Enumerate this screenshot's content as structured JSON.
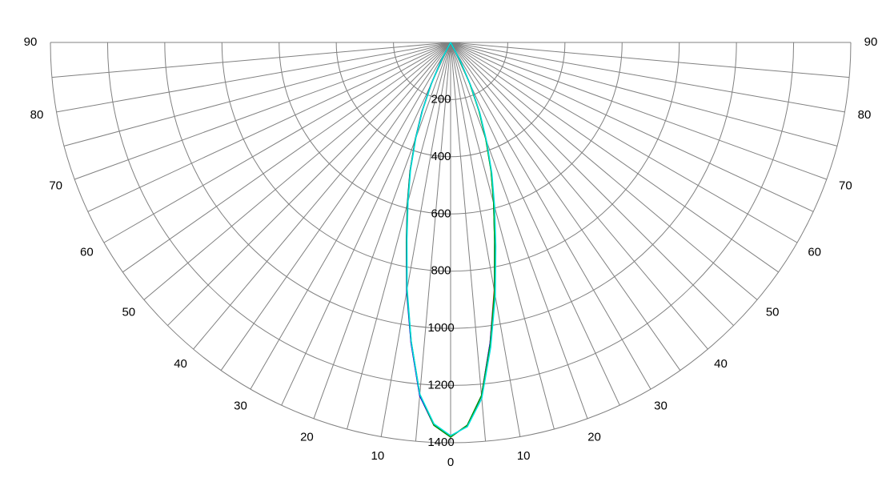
{
  "chart_data": {
    "type": "polar",
    "angles": [
      -30,
      -27.5,
      -25,
      -22.5,
      -20,
      -17.5,
      -15,
      -12.5,
      -10,
      -7.5,
      -5,
      -2.5,
      0,
      2.5,
      5,
      7.5,
      10,
      12.5,
      15,
      17.5,
      20,
      22.5,
      25,
      27.5,
      30
    ],
    "series": [
      {
        "color": "#ff0000",
        "values": [
          0,
          70,
          160,
          260,
          360,
          470,
          580,
          710,
          880,
          1060,
          1240,
          1340,
          1380,
          1340,
          1240,
          1060,
          880,
          715,
          585,
          475,
          365,
          265,
          165,
          75,
          0
        ]
      },
      {
        "color": "#0000ff",
        "values": [
          0,
          72,
          162,
          262,
          362,
          472,
          585,
          715,
          885,
          1060,
          1240,
          1340,
          1380,
          1340,
          1240,
          1060,
          885,
          712,
          582,
          472,
          362,
          262,
          162,
          72,
          0
        ]
      },
      {
        "color": "#00a000",
        "values": [
          0,
          68,
          158,
          258,
          360,
          470,
          582,
          712,
          880,
          1055,
          1235,
          1340,
          1380,
          1340,
          1240,
          1065,
          885,
          712,
          582,
          470,
          360,
          258,
          158,
          68,
          0
        ]
      },
      {
        "color": "#00e0e0",
        "values": [
          0,
          65,
          155,
          255,
          355,
          465,
          575,
          705,
          875,
          1055,
          1235,
          1335,
          1375,
          1345,
          1250,
          1075,
          900,
          730,
          595,
          480,
          370,
          268,
          168,
          78,
          0
        ]
      }
    ],
    "rlim": [
      0,
      1400
    ],
    "rticks": [
      200,
      400,
      600,
      800,
      1000,
      1200,
      1400
    ],
    "thetaticks": [
      {
        "value": -90,
        "label": "90"
      },
      {
        "value": -80,
        "label": "80"
      },
      {
        "value": -70,
        "label": "70"
      },
      {
        "value": -60,
        "label": "60"
      },
      {
        "value": -50,
        "label": "50"
      },
      {
        "value": -40,
        "label": "40"
      },
      {
        "value": -30,
        "label": "30"
      },
      {
        "value": -20,
        "label": "20"
      },
      {
        "value": -10,
        "label": "10"
      },
      0,
      10,
      20,
      30,
      40,
      50,
      60,
      70,
      80,
      90
    ],
    "grid": true
  }
}
